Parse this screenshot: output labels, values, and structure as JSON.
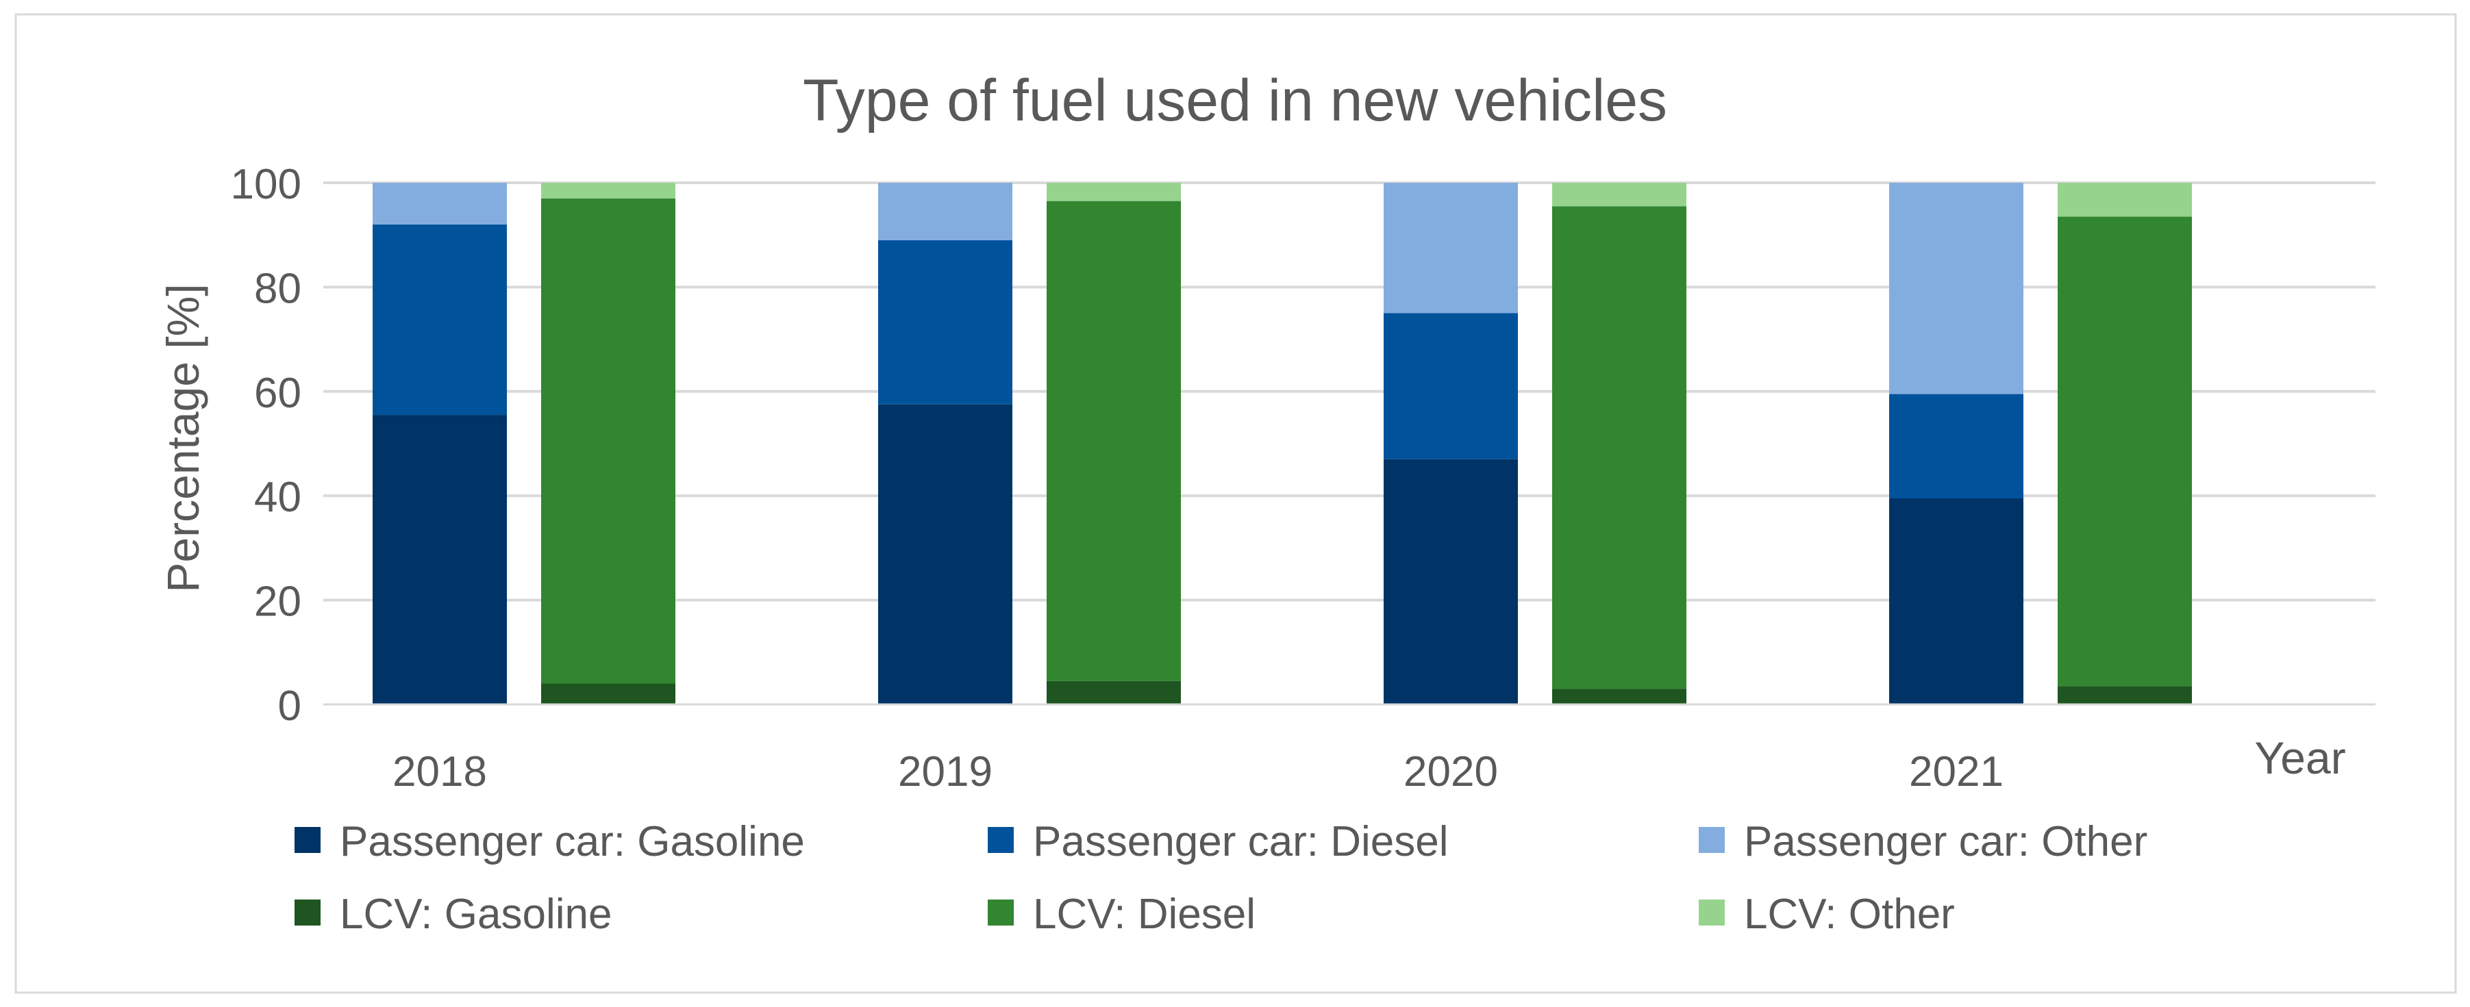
{
  "chart_data": {
    "type": "bar",
    "stacked": true,
    "title": "Type of fuel used in new vehicles",
    "xlabel": "Year",
    "ylabel": "Percentage [%]",
    "ylim": [
      0,
      100
    ],
    "yticks": [
      0,
      20,
      40,
      60,
      80,
      100
    ],
    "grid": true,
    "legend_position": "bottom",
    "categories": [
      "2018",
      "2019",
      "2020",
      "2021"
    ],
    "groups": [
      {
        "name": "Passenger car",
        "series": [
          {
            "name": "Passenger car: Gasoline",
            "color": "#003366",
            "values": [
              55.5,
              57.5,
              47.0,
              39.5
            ]
          },
          {
            "name": "Passenger car: Diesel",
            "color": "#00529B",
            "values": [
              36.5,
              31.5,
              28.0,
              20.0
            ]
          },
          {
            "name": "Passenger car: Other",
            "color": "#84ADDF",
            "values": [
              8.0,
              11.0,
              25.0,
              40.5
            ]
          }
        ]
      },
      {
        "name": "LCV",
        "series": [
          {
            "name": "LCV: Gasoline",
            "color": "#1E5520",
            "values": [
              4.0,
              4.5,
              3.0,
              3.5
            ]
          },
          {
            "name": "LCV: Diesel",
            "color": "#31862F",
            "values": [
              93.0,
              92.0,
              92.5,
              90.0
            ]
          },
          {
            "name": "LCV: Other",
            "color": "#96D48E",
            "values": [
              3.0,
              3.5,
              4.5,
              6.5
            ]
          }
        ]
      }
    ]
  }
}
